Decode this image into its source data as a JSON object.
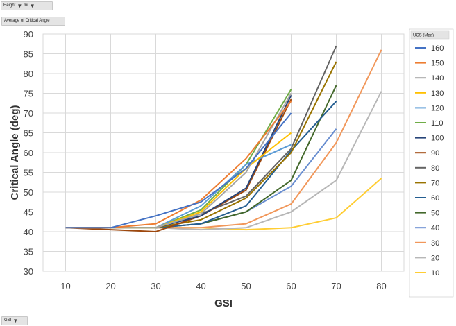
{
  "field_buttons": {
    "height_label": "Height",
    "unit_label": "mi",
    "values_label": "Average of Critical Angle",
    "axis_field_label": "GSI"
  },
  "chart_data": {
    "type": "line",
    "title": "",
    "xlabel": "GSI",
    "ylabel": "Critical Angle (deg)",
    "xlim": [
      10,
      80
    ],
    "ylim": [
      30,
      90
    ],
    "x_ticks": [
      10,
      20,
      30,
      40,
      50,
      60,
      70,
      80
    ],
    "y_ticks": [
      30,
      35,
      40,
      45,
      50,
      55,
      60,
      65,
      70,
      75,
      80,
      85,
      90
    ],
    "grid": true,
    "legend_title": "UCS (Mpa)",
    "legend_position": "right",
    "series": [
      {
        "name": "160",
        "color": "#4472c4",
        "x": [
          10,
          20,
          30,
          40,
          50,
          60
        ],
        "y": [
          41,
          41,
          44,
          47.5,
          56,
          70
        ]
      },
      {
        "name": "150",
        "color": "#ed7d31",
        "x": [
          10,
          20,
          30,
          40,
          50,
          60
        ],
        "y": [
          41,
          41,
          42,
          48,
          58.5,
          73
        ]
      },
      {
        "name": "140",
        "color": "#a5a5a5",
        "x": [
          10,
          20,
          30,
          40,
          50,
          60
        ],
        "y": [
          41,
          41,
          41,
          44.5,
          55,
          75
        ]
      },
      {
        "name": "130",
        "color": "#ffc000",
        "x": [
          10,
          20,
          30,
          40,
          50,
          60
        ],
        "y": [
          41,
          41,
          41,
          45,
          56,
          65
        ]
      },
      {
        "name": "120",
        "color": "#5b9bd5",
        "x": [
          10,
          20,
          30,
          40,
          50,
          60
        ],
        "y": [
          41,
          41,
          41,
          46.5,
          57,
          62
        ]
      },
      {
        "name": "110",
        "color": "#70ad47",
        "x": [
          10,
          20,
          30,
          40,
          50,
          60
        ],
        "y": [
          41,
          41,
          41,
          45.5,
          57,
          76
        ]
      },
      {
        "name": "100",
        "color": "#264478",
        "x": [
          10,
          20,
          30,
          40,
          50,
          60
        ],
        "y": [
          41,
          41,
          41,
          44,
          51,
          74.5
        ]
      },
      {
        "name": "90",
        "color": "#9e480e",
        "x": [
          10,
          20,
          30,
          40,
          50,
          60
        ],
        "y": [
          41,
          40.5,
          40,
          44,
          50.5,
          73.5
        ]
      },
      {
        "name": "80",
        "color": "#636363",
        "x": [
          10,
          20,
          30,
          40,
          50,
          60,
          70
        ],
        "y": [
          41,
          41,
          41,
          44.5,
          49,
          61,
          87
        ]
      },
      {
        "name": "70",
        "color": "#997300",
        "x": [
          10,
          20,
          30,
          40,
          50,
          60,
          70
        ],
        "y": [
          41,
          41,
          41,
          43,
          48.5,
          60,
          83
        ]
      },
      {
        "name": "60",
        "color": "#255e91",
        "x": [
          10,
          20,
          30,
          40,
          50,
          60,
          70
        ],
        "y": [
          41,
          41,
          41,
          42,
          46.5,
          60.5,
          73
        ]
      },
      {
        "name": "50",
        "color": "#43682b",
        "x": [
          10,
          20,
          30,
          40,
          50,
          60,
          70
        ],
        "y": [
          41,
          41,
          41,
          42,
          45,
          53,
          77
        ]
      },
      {
        "name": "40",
        "color": "#698ed0",
        "x": [
          10,
          20,
          30,
          40,
          50,
          60,
          70
        ],
        "y": [
          41,
          41,
          41,
          42,
          45,
          51.5,
          66
        ]
      },
      {
        "name": "30",
        "color": "#f1975a",
        "x": [
          10,
          20,
          30,
          40,
          50,
          60,
          70,
          80
        ],
        "y": [
          41,
          41,
          41,
          41,
          42,
          47,
          62.5,
          86
        ]
      },
      {
        "name": "20",
        "color": "#b7b7b7",
        "x": [
          10,
          20,
          30,
          40,
          50,
          60,
          70,
          80
        ],
        "y": [
          41,
          41,
          41,
          40.5,
          41,
          45,
          53,
          75.5
        ]
      },
      {
        "name": "10",
        "color": "#ffcd33",
        "x": [
          10,
          20,
          30,
          40,
          50,
          60,
          70,
          80
        ],
        "y": [
          41,
          41,
          41,
          41,
          40.5,
          41,
          43.5,
          53.5
        ]
      }
    ]
  }
}
